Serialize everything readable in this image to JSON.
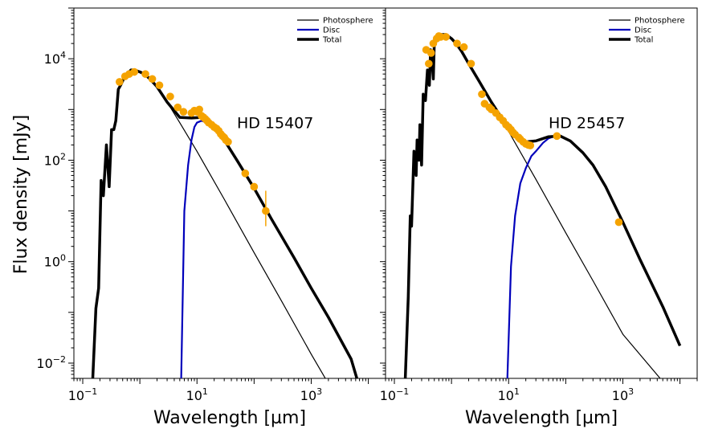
{
  "chart_data": [
    {
      "type": "line",
      "panel": "left",
      "star_label": "HD 15407",
      "xscale": "log",
      "yscale": "log",
      "xlim": [
        0.07,
        20000
      ],
      "ylim": [
        0.005,
        100000
      ],
      "xlabel": "Wavelength [µm]",
      "ylabel": "Flux density [mJy]",
      "x_ticks": [
        {
          "value": 0.1,
          "base": "10",
          "exp": "−1"
        },
        {
          "value": 10,
          "base": "10",
          "exp": "1"
        },
        {
          "value": 1000,
          "base": "10",
          "exp": "3"
        }
      ],
      "y_ticks": [
        {
          "value": 0.01,
          "base": "10",
          "exp": "−2"
        },
        {
          "value": 1,
          "base": "10",
          "exp": "0"
        },
        {
          "value": 100,
          "base": "10",
          "exp": "2"
        },
        {
          "value": 10000,
          "base": "10",
          "exp": "4"
        }
      ],
      "legend": [
        "Photosphere",
        "Disc",
        "Total"
      ],
      "legend_position": "top-right",
      "series": [
        {
          "name": "Photosphere",
          "color": "#000000",
          "x": [
            0.15,
            0.17,
            0.19,
            0.21,
            0.23,
            0.26,
            0.29,
            0.32,
            0.35,
            0.38,
            0.42,
            0.46,
            0.52,
            0.6,
            0.7,
            0.8,
            1.0,
            1.2,
            1.5,
            2.0,
            3.0,
            5.0,
            10,
            30,
            100,
            300,
            1000,
            2300
          ],
          "y": [
            0.005,
            0.12,
            0.3,
            40,
            20,
            200,
            30,
            400,
            400,
            600,
            2500,
            3000,
            4000,
            5000,
            6000,
            6000,
            5500,
            5000,
            4000,
            2800,
            1400,
            550,
            150,
            17,
            1.5,
            0.17,
            0.015,
            0.003
          ]
        },
        {
          "name": "Disc",
          "color": "#0000bb",
          "x": [
            5.3,
            6.0,
            7.0,
            8.0,
            9.0,
            10,
            12,
            15
          ],
          "y": [
            0.005,
            10,
            80,
            250,
            450,
            550,
            600,
            550
          ]
        },
        {
          "name": "Total",
          "color": "#000000",
          "x": [
            0.15,
            0.17,
            0.19,
            0.21,
            0.23,
            0.26,
            0.29,
            0.32,
            0.35,
            0.38,
            0.42,
            0.46,
            0.52,
            0.6,
            0.7,
            0.8,
            1.0,
            1.2,
            1.5,
            2.0,
            3.0,
            5.0,
            8.0,
            12,
            15,
            20,
            30,
            50,
            100,
            200,
            500,
            1000,
            2000,
            5000,
            6300
          ],
          "y": [
            0.005,
            0.12,
            0.3,
            40,
            20,
            200,
            30,
            400,
            400,
            600,
            2500,
            3000,
            4000,
            5000,
            6000,
            6000,
            5500,
            5000,
            4000,
            2800,
            1400,
            700,
            680,
            700,
            600,
            430,
            250,
            100,
            28,
            7,
            1.2,
            0.3,
            0.08,
            0.012,
            0.005
          ]
        }
      ],
      "points": {
        "name": "Photometry",
        "color": "#f5a300",
        "x": [
          0.44,
          0.55,
          0.65,
          0.8,
          1.25,
          1.65,
          2.2,
          3.4,
          4.6,
          5.8,
          8.0,
          9.0,
          10,
          11,
          12,
          13,
          14,
          15,
          16,
          18,
          20,
          22,
          24,
          26,
          28,
          30,
          32,
          35,
          70,
          100,
          160
        ],
        "y": [
          3500,
          4500,
          5000,
          5500,
          5000,
          4000,
          3000,
          1800,
          1100,
          900,
          850,
          950,
          900,
          1000,
          750,
          700,
          650,
          600,
          550,
          500,
          450,
          420,
          380,
          330,
          300,
          280,
          250,
          230,
          55,
          30,
          10
        ],
        "err_low": [
          0,
          0,
          0,
          0,
          0,
          0,
          0,
          0,
          0,
          0,
          0,
          0,
          0,
          0,
          0,
          0,
          0,
          0,
          0,
          0,
          0,
          0,
          0,
          0,
          0,
          0,
          0,
          0,
          0,
          0,
          5
        ],
        "err_high": [
          0,
          0,
          0,
          0,
          0,
          0,
          0,
          0,
          0,
          0,
          0,
          0,
          0,
          0,
          0,
          0,
          0,
          0,
          0,
          0,
          0,
          0,
          0,
          0,
          0,
          0,
          0,
          0,
          0,
          0,
          15
        ]
      }
    },
    {
      "type": "line",
      "panel": "right",
      "star_label": "HD 25457",
      "xscale": "log",
      "yscale": "log",
      "xlim": [
        0.07,
        20000
      ],
      "ylim": [
        0.005,
        100000
      ],
      "xlabel": "Wavelength [µm]",
      "ylabel": "",
      "x_ticks": [
        {
          "value": 0.1,
          "base": "10",
          "exp": "−1"
        },
        {
          "value": 10,
          "base": "10",
          "exp": "1"
        },
        {
          "value": 1000,
          "base": "10",
          "exp": "3"
        }
      ],
      "y_ticks": [],
      "legend": [
        "Photosphere",
        "Disc",
        "Total"
      ],
      "legend_position": "top-right",
      "series": [
        {
          "name": "Photosphere",
          "color": "#000000",
          "x": [
            0.155,
            0.175,
            0.19,
            0.2,
            0.22,
            0.24,
            0.25,
            0.27,
            0.28,
            0.3,
            0.32,
            0.35,
            0.38,
            0.41,
            0.43,
            0.46,
            0.48,
            0.5,
            0.55,
            0.6,
            0.7,
            0.8,
            1.0,
            1.2,
            1.5,
            2.0,
            3.0,
            5.0,
            10,
            30,
            100,
            300,
            1000,
            4500
          ],
          "y": [
            0.005,
            0.2,
            8,
            5,
            150,
            50,
            250,
            100,
            500,
            80,
            2000,
            1500,
            6000,
            3000,
            15000,
            8000,
            4000,
            20000,
            25000,
            30000,
            30000,
            30000,
            25000,
            20000,
            14000,
            8000,
            3700,
            1400,
            370,
            42,
            3.7,
            0.42,
            0.037,
            0.005
          ]
        },
        {
          "name": "Disc",
          "color": "#0000bb",
          "x": [
            9.5,
            11,
            13,
            16,
            20,
            25,
            30,
            40,
            50,
            60,
            75
          ],
          "y": [
            0.005,
            0.8,
            8,
            35,
            70,
            120,
            150,
            220,
            270,
            290,
            300
          ]
        },
        {
          "name": "Total",
          "color": "#000000",
          "x": [
            0.155,
            0.175,
            0.19,
            0.2,
            0.22,
            0.24,
            0.25,
            0.27,
            0.28,
            0.3,
            0.32,
            0.35,
            0.38,
            0.41,
            0.43,
            0.46,
            0.48,
            0.5,
            0.55,
            0.6,
            0.7,
            0.8,
            1.0,
            1.2,
            1.5,
            2.0,
            3.0,
            5.0,
            10,
            20,
            30,
            50,
            80,
            120,
            200,
            300,
            500,
            1000,
            2000,
            5000,
            10000
          ],
          "y": [
            0.005,
            0.2,
            8,
            5,
            150,
            50,
            250,
            100,
            500,
            80,
            2000,
            1500,
            6000,
            3000,
            15000,
            8000,
            4000,
            20000,
            25000,
            30000,
            30000,
            30000,
            25000,
            20000,
            14000,
            8000,
            3700,
            1400,
            420,
            230,
            240,
            290,
            300,
            240,
            140,
            80,
            30,
            6,
            1.1,
            0.13,
            0.022
          ]
        }
      ],
      "points": {
        "name": "Photometry",
        "color": "#f5a300",
        "x": [
          0.36,
          0.4,
          0.44,
          0.48,
          0.55,
          0.6,
          0.65,
          0.8,
          1.25,
          1.65,
          2.2,
          3.4,
          3.8,
          4.6,
          5.0,
          6.0,
          7.0,
          8.0,
          9.0,
          10,
          11,
          12,
          13,
          15,
          16,
          18,
          20,
          22,
          24,
          70,
          850
        ],
        "y": [
          15000,
          8000,
          13000,
          20000,
          25000,
          28000,
          27000,
          27000,
          20000,
          17000,
          8000,
          2000,
          1300,
          1100,
          1000,
          850,
          700,
          600,
          500,
          450,
          400,
          350,
          320,
          280,
          260,
          230,
          210,
          200,
          195,
          300,
          6
        ],
        "err_low": [
          0,
          0,
          0,
          0,
          0,
          0,
          0,
          0,
          3000,
          0,
          0,
          0,
          0,
          0,
          0,
          0,
          0,
          0,
          0,
          0,
          0,
          0,
          0,
          0,
          0,
          0,
          0,
          0,
          0,
          0,
          0
        ],
        "err_high": [
          0,
          0,
          0,
          0,
          0,
          0,
          0,
          0,
          3000,
          0,
          0,
          0,
          0,
          0,
          0,
          0,
          0,
          0,
          0,
          0,
          0,
          0,
          0,
          0,
          0,
          0,
          0,
          0,
          0,
          0,
          0
        ]
      }
    }
  ]
}
